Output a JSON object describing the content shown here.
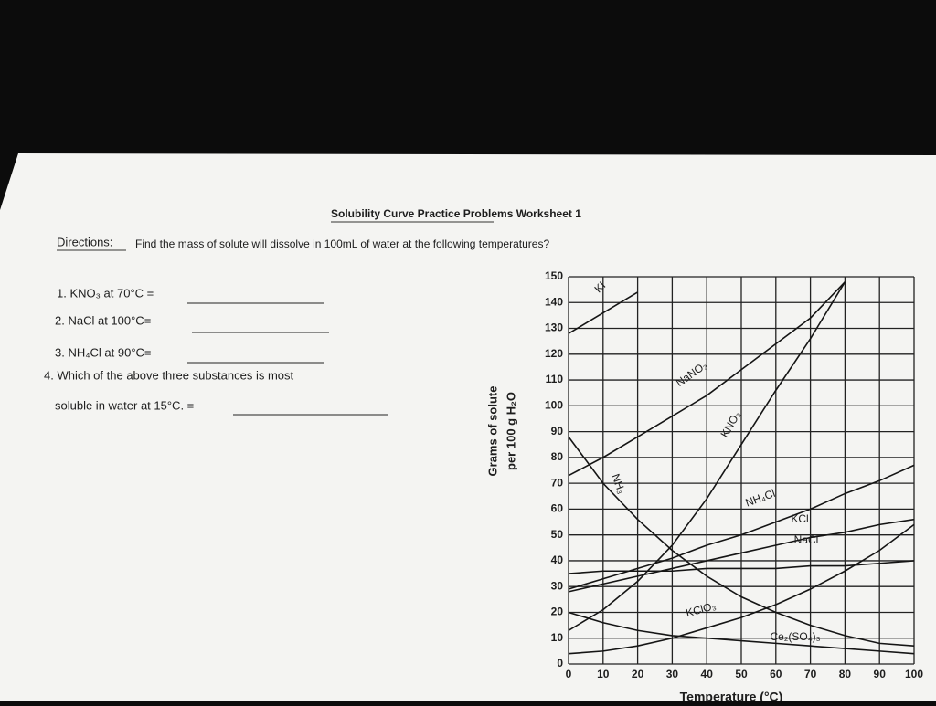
{
  "worksheet": {
    "title": "Solubility Curve Practice Problems Worksheet 1",
    "directions_label": "Directions:",
    "directions": "Find the mass of solute will dissolve in 100mL of water at the following temperatures?",
    "questions": [
      "1.  KNO₃ at 70°C =",
      "2.  NaCl at 100°C=",
      "3.  NH₄Cl at 90°C=",
      "4. Which of the above three substances is most",
      "soluble in water at 15°C. ="
    ]
  },
  "chart_data": {
    "type": "line",
    "y_label": [
      "Grams of solute",
      "per 100 g H₂O"
    ],
    "x_label": "Temperature (°C)",
    "x": [
      0,
      10,
      20,
      30,
      40,
      50,
      60,
      70,
      80,
      90,
      100
    ],
    "xlim": [
      0,
      100
    ],
    "xticks": [
      0,
      10,
      20,
      30,
      40,
      50,
      60,
      70,
      80,
      90,
      100
    ],
    "ylim": [
      0,
      150
    ],
    "yticks": [
      0,
      10,
      20,
      30,
      40,
      50,
      60,
      70,
      80,
      90,
      100,
      110,
      120,
      130,
      140,
      150
    ],
    "grid": true,
    "line_color": "#151515",
    "series": [
      {
        "name": "KI",
        "values": [
          128,
          136,
          144,
          null,
          null,
          null,
          null,
          null,
          null,
          null,
          null
        ]
      },
      {
        "name": "NaNO₃",
        "values": [
          73,
          80,
          88,
          96,
          104,
          114,
          124,
          134,
          148,
          null,
          null
        ]
      },
      {
        "name": "KNO₃",
        "values": [
          13,
          21,
          32,
          46,
          64,
          85,
          106,
          126,
          148,
          null,
          null
        ]
      },
      {
        "name": "NH₃",
        "values": [
          88,
          70,
          56,
          44,
          34,
          26,
          20,
          15,
          11,
          8,
          7
        ]
      },
      {
        "name": "NH₄Cl",
        "values": [
          29,
          33,
          37,
          41,
          46,
          50,
          55,
          60,
          66,
          71,
          77
        ]
      },
      {
        "name": "KCl",
        "values": [
          28,
          31,
          34,
          37,
          40,
          43,
          46,
          49,
          51,
          54,
          56
        ]
      },
      {
        "name": "NaCl",
        "values": [
          35,
          36,
          36,
          36,
          37,
          37,
          37,
          38,
          38,
          39,
          40
        ]
      },
      {
        "name": "KClO₃",
        "values": [
          4,
          5,
          7,
          10,
          14,
          18,
          23,
          29,
          36,
          44,
          54
        ]
      },
      {
        "name": "Ce₂(SO₄)₃",
        "values": [
          20,
          16,
          13,
          11,
          10,
          9,
          8,
          7,
          6,
          5,
          4
        ]
      }
    ]
  }
}
